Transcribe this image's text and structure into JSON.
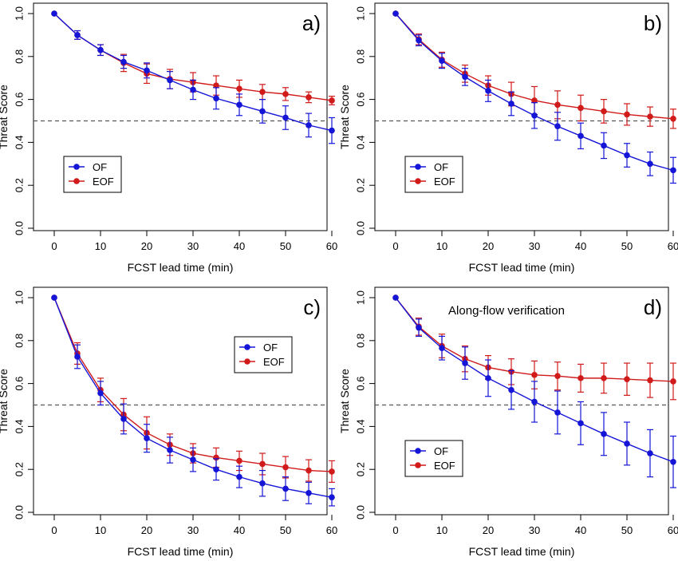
{
  "colors": {
    "of": "#1515d8",
    "eof": "#d11a1a",
    "threshold": "#555555",
    "axis": "#000000"
  },
  "chart_data": [
    {
      "type": "line",
      "panel_label": "a)",
      "annotation": "",
      "xlabel": "FCST lead time (min)",
      "ylabel": "Threat Score",
      "xlim": [
        0,
        60
      ],
      "ylim": [
        0,
        1
      ],
      "x_ticks": [
        "0",
        "10",
        "20",
        "30",
        "40",
        "50",
        "60"
      ],
      "y_ticks": [
        "0.0",
        "0.2",
        "0.4",
        "0.6",
        "0.8",
        "1.0"
      ],
      "threshold": 0.5,
      "legend_position": "bottom-left",
      "x": [
        0,
        5,
        10,
        15,
        20,
        25,
        30,
        35,
        40,
        45,
        50,
        55,
        60
      ],
      "series": [
        {
          "name": "OF",
          "color": "of",
          "values": [
            1.0,
            0.9,
            0.83,
            0.775,
            0.735,
            0.69,
            0.645,
            0.605,
            0.575,
            0.545,
            0.515,
            0.48,
            0.455
          ],
          "err": [
            0,
            0.02,
            0.025,
            0.03,
            0.035,
            0.04,
            0.045,
            0.05,
            0.05,
            0.055,
            0.055,
            0.055,
            0.06
          ]
        },
        {
          "name": "EOF",
          "color": "eof",
          "values": [
            1.0,
            0.9,
            0.83,
            0.77,
            0.72,
            0.695,
            0.68,
            0.665,
            0.65,
            0.635,
            0.625,
            0.61,
            0.595
          ],
          "err": [
            0,
            0.02,
            0.025,
            0.04,
            0.045,
            0.045,
            0.045,
            0.045,
            0.04,
            0.035,
            0.03,
            0.025,
            0.02
          ]
        }
      ]
    },
    {
      "type": "line",
      "panel_label": "b)",
      "annotation": "",
      "xlabel": "FCST lead time (min)",
      "ylabel": "Threat Score",
      "xlim": [
        0,
        60
      ],
      "ylim": [
        0,
        1
      ],
      "x_ticks": [
        "0",
        "10",
        "20",
        "30",
        "40",
        "50",
        "60"
      ],
      "y_ticks": [
        "0.0",
        "0.2",
        "0.4",
        "0.6",
        "0.8",
        "1.0"
      ],
      "threshold": 0.5,
      "legend_position": "bottom-left",
      "x": [
        0,
        5,
        10,
        15,
        20,
        25,
        30,
        35,
        40,
        45,
        50,
        55,
        60
      ],
      "series": [
        {
          "name": "OF",
          "color": "of",
          "values": [
            1.0,
            0.875,
            0.78,
            0.705,
            0.64,
            0.58,
            0.525,
            0.475,
            0.43,
            0.385,
            0.34,
            0.3,
            0.27
          ],
          "err": [
            0,
            0.025,
            0.035,
            0.04,
            0.05,
            0.055,
            0.06,
            0.065,
            0.06,
            0.06,
            0.055,
            0.055,
            0.06
          ]
        },
        {
          "name": "EOF",
          "color": "eof",
          "values": [
            1.0,
            0.88,
            0.785,
            0.72,
            0.665,
            0.625,
            0.595,
            0.575,
            0.56,
            0.545,
            0.53,
            0.52,
            0.51
          ],
          "err": [
            0,
            0.025,
            0.035,
            0.04,
            0.045,
            0.055,
            0.065,
            0.065,
            0.06,
            0.055,
            0.05,
            0.045,
            0.045
          ]
        }
      ]
    },
    {
      "type": "line",
      "panel_label": "c)",
      "annotation": "",
      "xlabel": "FCST lead time (min)",
      "ylabel": "Threat Score",
      "xlim": [
        0,
        60
      ],
      "ylim": [
        0,
        1
      ],
      "x_ticks": [
        "0",
        "10",
        "20",
        "30",
        "40",
        "50",
        "60"
      ],
      "y_ticks": [
        "0.0",
        "0.2",
        "0.4",
        "0.6",
        "0.8",
        "1.0"
      ],
      "threshold": 0.5,
      "legend_position": "upper-right",
      "x": [
        0,
        5,
        10,
        15,
        20,
        25,
        30,
        35,
        40,
        45,
        50,
        55,
        60
      ],
      "series": [
        {
          "name": "OF",
          "color": "of",
          "values": [
            1.0,
            0.725,
            0.555,
            0.435,
            0.345,
            0.29,
            0.245,
            0.2,
            0.165,
            0.135,
            0.11,
            0.09,
            0.07
          ],
          "err": [
            0,
            0.055,
            0.055,
            0.07,
            0.065,
            0.06,
            0.055,
            0.05,
            0.05,
            0.06,
            0.055,
            0.05,
            0.04
          ]
        },
        {
          "name": "EOF",
          "color": "eof",
          "values": [
            1.0,
            0.74,
            0.57,
            0.455,
            0.37,
            0.315,
            0.275,
            0.255,
            0.24,
            0.225,
            0.21,
            0.195,
            0.19
          ],
          "err": [
            0,
            0.05,
            0.055,
            0.075,
            0.075,
            0.05,
            0.045,
            0.045,
            0.045,
            0.05,
            0.05,
            0.05,
            0.05
          ]
        }
      ]
    },
    {
      "type": "line",
      "panel_label": "d)",
      "annotation": "Along-flow verification",
      "xlabel": "FCST lead time (min)",
      "ylabel": "Threat Score",
      "xlim": [
        0,
        60
      ],
      "ylim": [
        0,
        1
      ],
      "x_ticks": [
        "0",
        "10",
        "20",
        "30",
        "40",
        "50",
        "60"
      ],
      "y_ticks": [
        "0.0",
        "0.2",
        "0.4",
        "0.6",
        "0.8",
        "1.0"
      ],
      "threshold": 0.5,
      "legend_position": "bottom-left",
      "x": [
        0,
        5,
        10,
        15,
        20,
        25,
        30,
        35,
        40,
        45,
        50,
        55,
        60
      ],
      "series": [
        {
          "name": "OF",
          "color": "of",
          "values": [
            1.0,
            0.86,
            0.765,
            0.695,
            0.625,
            0.57,
            0.515,
            0.465,
            0.415,
            0.365,
            0.32,
            0.275,
            0.235
          ],
          "err": [
            0,
            0.04,
            0.055,
            0.075,
            0.085,
            0.09,
            0.095,
            0.1,
            0.1,
            0.1,
            0.1,
            0.11,
            0.12
          ]
        },
        {
          "name": "EOF",
          "color": "eof",
          "values": [
            1.0,
            0.865,
            0.775,
            0.715,
            0.675,
            0.655,
            0.64,
            0.635,
            0.625,
            0.625,
            0.62,
            0.615,
            0.61
          ],
          "err": [
            0,
            0.04,
            0.055,
            0.06,
            0.055,
            0.06,
            0.065,
            0.065,
            0.065,
            0.07,
            0.075,
            0.08,
            0.085
          ]
        }
      ]
    }
  ]
}
